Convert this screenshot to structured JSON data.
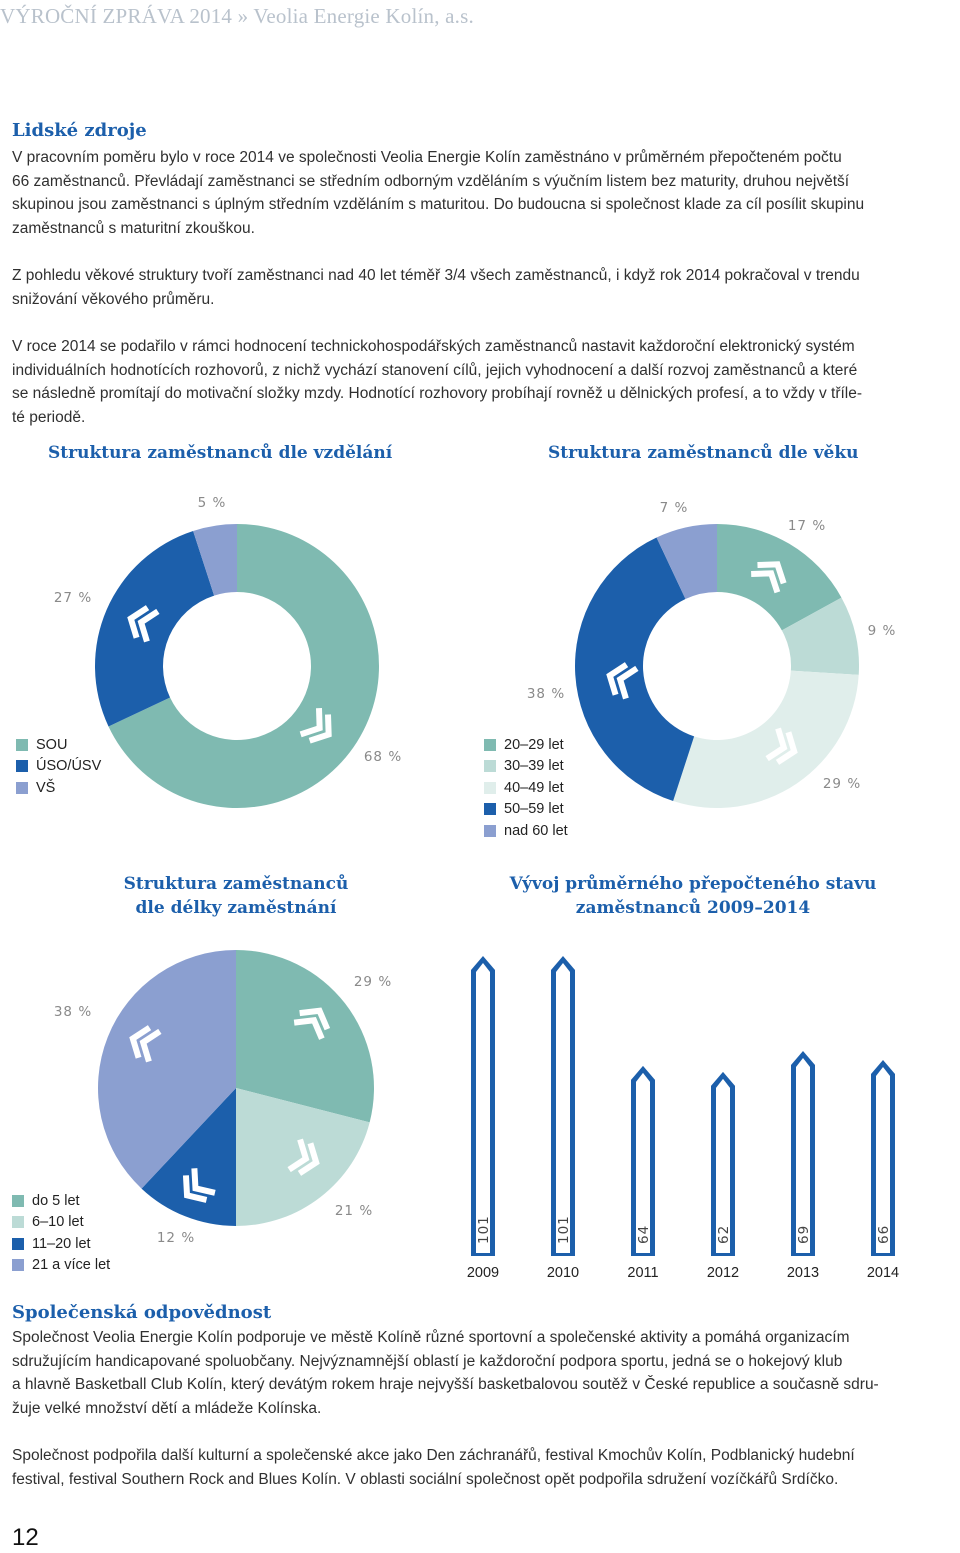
{
  "header": {
    "running_title": "VÝROČNÍ ZPRÁVA 2014 » Veolia Energie Kolín, a.s."
  },
  "colors": {
    "accent_blue": "#1c5fab",
    "teal": "#7fbab1",
    "light_teal": "#bcdbd6",
    "very_light_teal": "#e0eeeb",
    "dark_blue": "#1c5fab",
    "lavender": "#8b9fd0"
  },
  "human_resources": {
    "title": "Lidské zdroje",
    "para1": [
      " V pracovním poměru bylo v roce 2014 ve společnosti Veolia Energie Kolín zaměstnáno v průměrném přepočteném počtu",
      "66 zaměstnanců. Převládají zaměstnanci se středním odborným vzděláním s výučním listem bez maturity, druhou největší",
      "skupinou jsou zaměstnanci s úplným středním vzděláním s maturitou. Do budoucna si společnost klade za cíl posílit skupinu",
      "zaměstnanců s maturitní zkouškou."
    ],
    "para2": [
      "Z pohledu věkové struktury tvoří zaměstnanci nad 40 let téměř  3/4  všech zaměstnanců, i když  rok 2014 pokračoval v trendu",
      "snižování věkového průměru."
    ],
    "para3": [
      "V roce 2014 se podařilo v rámci hodnocení technickohospodářských zaměstnanců nastavit každoroční elektronický systém",
      "individuálních hodnotících rozhovorů, z nichž vychází stanovení cílů, jejich vyhodnocení a další rozvoj zaměstnanců a které",
      "se následně promítají do motivační složky mzdy. Hodnotící rozhovory probíhají rovněž u  dělnických  profesí, a to vždy v tříle-",
      "té periodě."
    ]
  },
  "chart_data": [
    {
      "type": "pie",
      "title": "Struktura zaměstnanců dle vzdělání",
      "labels": [
        "SOU",
        "ÚSO/ÚSV",
        "VŠ"
      ],
      "values": [
        68,
        27,
        5
      ],
      "value_labels": [
        "68 %",
        "27 %",
        "5 %"
      ],
      "colors": [
        "#7fbab1",
        "#1c5fab",
        "#8b9fd0"
      ],
      "donut": true,
      "legend": "bottom-left"
    },
    {
      "type": "pie",
      "title": "Struktura zaměstnanců dle věku",
      "labels": [
        "20–29 let",
        "30–39 let",
        "40–49 let",
        "50–59 let",
        "nad 60 let"
      ],
      "values": [
        17,
        9,
        29,
        38,
        7
      ],
      "value_labels": [
        "17 %",
        "9 %",
        "29 %",
        "38 %",
        "7 %"
      ],
      "colors": [
        "#7fbab1",
        "#bcdbd6",
        "#e0eeeb",
        "#1c5fab",
        "#8b9fd0"
      ],
      "donut": true,
      "legend": "bottom-left"
    },
    {
      "type": "pie",
      "title": "Struktura zaměstnanců dle délky zaměstnání",
      "labels": [
        "do 5 let",
        "6–10 let",
        "11–20 let",
        "21 a více let"
      ],
      "values": [
        29,
        21,
        12,
        38
      ],
      "value_labels": [
        "29 %",
        "21 %",
        "12 %",
        "38 %"
      ],
      "colors": [
        "#7fbab1",
        "#bcdbd6",
        "#1c5fab",
        "#8b9fd0"
      ],
      "donut": false,
      "legend": "bottom-left"
    },
    {
      "type": "bar",
      "title": "Vývoj průměrného přepočteného stavu zaměstnanců 2009–2014",
      "categories": [
        "2009",
        "2010",
        "2011",
        "2012",
        "2013",
        "2014"
      ],
      "values": [
        101,
        101,
        64,
        62,
        69,
        66
      ],
      "ylim": [
        0,
        101
      ]
    }
  ],
  "chart_titles": {
    "education": "Struktura zaměstnanců dle vzdělání",
    "age": "Struktura zaměstnanců dle věku",
    "tenure_l1": "Struktura zaměstnanců",
    "tenure_l2": "dle délky zaměstnání",
    "headcount_l1": "Vývoj průměrného přepočteného stavu",
    "headcount_l2": "zaměstnanců 2009–2014"
  },
  "social_responsibility": {
    "title": "Společenská odpovědnost",
    "para1": [
      "Společnost Veolia Energie Kolín podporuje ve městě Kolíně různé sportovní a společenské aktivity a pomáhá organizacím",
      "sdružujícím handicapované spoluobčany. Nejvýznamnější oblastí je každoroční podpora sportu, jedná se o hokejový klub",
      "a hlavně Basketball Club Kolín, který devátým rokem hraje nejvyšší basketbalovou soutěž v České republice a současně sdru-",
      "žuje velké množství dětí a mládeže Kolínska."
    ],
    "para2": [
      "Společnost podpořila další kulturní a společenské akce jako Den záchranářů, festival Kmochův Kolín, Podblanický hudební",
      "festival, festival Southern Rock and Blues Kolín. V oblasti sociální společnost opět podpořila sdružení vozíčkářů Srdíčko."
    ]
  },
  "footer": {
    "page_number": "12"
  }
}
